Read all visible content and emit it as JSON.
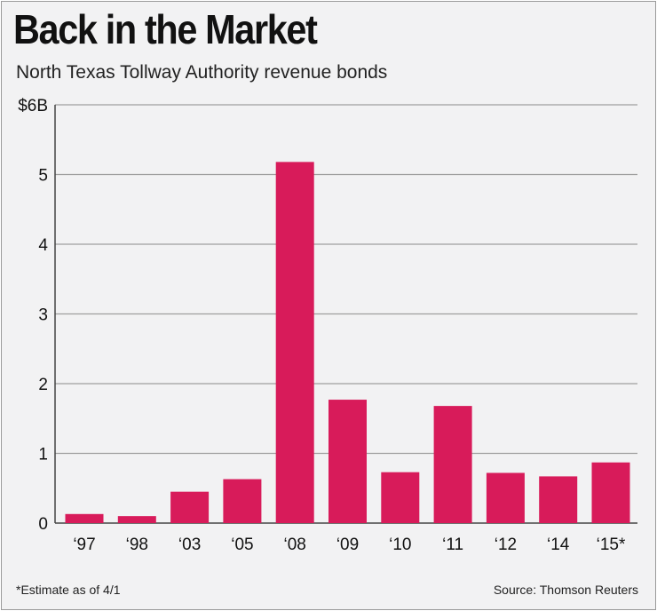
{
  "title": "Back in the Market",
  "subtitle": "North Texas Tollway Authority revenue bonds",
  "footnote": "*Estimate as of 4/1",
  "source": "Source: Thomson Reuters",
  "colors": {
    "bar": "#d81b5a",
    "grid": "#9e9e9e",
    "background": "#f2f2f3",
    "text": "#111111"
  },
  "chart_data": {
    "type": "bar",
    "title": "Back in the Market",
    "subtitle": "North Texas Tollway Authority revenue bonds",
    "categories": [
      "‘97",
      "‘98",
      "‘03",
      "‘05",
      "‘08",
      "‘09",
      "‘10",
      "‘11",
      "‘12",
      "‘14",
      "‘15*"
    ],
    "values": [
      0.13,
      0.1,
      0.45,
      0.63,
      5.18,
      1.77,
      0.73,
      1.68,
      0.72,
      0.67,
      0.87
    ],
    "y_ticks": [
      0,
      1,
      2,
      3,
      4,
      5,
      6
    ],
    "y_tick_labels": [
      "0",
      "1",
      "2",
      "3",
      "4",
      "5",
      "$6B"
    ],
    "ylim": [
      0,
      6
    ],
    "grid": true,
    "legend": "none"
  }
}
